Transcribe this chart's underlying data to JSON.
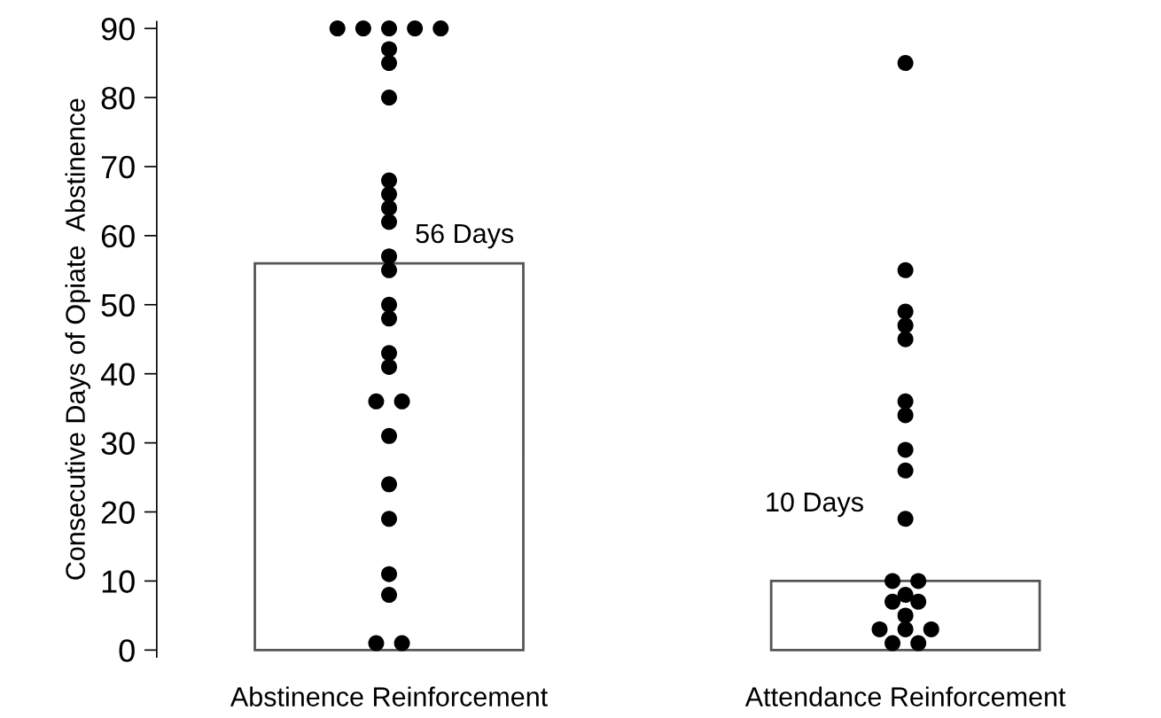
{
  "chart_data": {
    "type": "bar",
    "ylabel": "Consecutive Days of Opiate  Abstinence",
    "categories": [
      "Abstinence Reinforcement",
      "Attendance Reinforcement"
    ],
    "values": [
      56,
      10
    ],
    "value_labels": [
      "56 Days",
      "10 Days"
    ],
    "color": "#ffffff",
    "ylim": [
      -1,
      91
    ],
    "yticks": [
      0,
      10,
      20,
      30,
      40,
      50,
      60,
      70,
      80,
      90
    ],
    "grid": false,
    "legend": false,
    "series": [
      {
        "type": "scatter",
        "color": "#000000",
        "marker": "circle",
        "x": [
          "Abstinence Reinforcement",
          "Abstinence Reinforcement",
          "Abstinence Reinforcement",
          "Abstinence Reinforcement",
          "Abstinence Reinforcement",
          "Abstinence Reinforcement",
          "Abstinence Reinforcement",
          "Abstinence Reinforcement",
          "Abstinence Reinforcement",
          "Abstinence Reinforcement",
          "Abstinence Reinforcement",
          "Abstinence Reinforcement",
          "Abstinence Reinforcement",
          "Abstinence Reinforcement",
          "Abstinence Reinforcement",
          "Abstinence Reinforcement",
          "Abstinence Reinforcement",
          "Abstinence Reinforcement",
          "Abstinence Reinforcement",
          "Abstinence Reinforcement",
          "Abstinence Reinforcement",
          "Abstinence Reinforcement",
          "Abstinence Reinforcement",
          "Abstinence Reinforcement",
          "Abstinence Reinforcement",
          "Abstinence Reinforcement",
          "Abstinence Reinforcement"
        ],
        "values": [
          90,
          90,
          90,
          90,
          90,
          87,
          85,
          80,
          68,
          66,
          64,
          62,
          57,
          55,
          50,
          48,
          43,
          41,
          36,
          36,
          31,
          24,
          19,
          11,
          8,
          1,
          1
        ]
      },
      {
        "type": "scatter",
        "color": "#000000",
        "marker": "circle",
        "x": [
          "Attendance Reinforcement",
          "Attendance Reinforcement",
          "Attendance Reinforcement",
          "Attendance Reinforcement",
          "Attendance Reinforcement",
          "Attendance Reinforcement",
          "Attendance Reinforcement",
          "Attendance Reinforcement",
          "Attendance Reinforcement",
          "Attendance Reinforcement",
          "Attendance Reinforcement",
          "Attendance Reinforcement",
          "Attendance Reinforcement",
          "Attendance Reinforcement",
          "Attendance Reinforcement",
          "Attendance Reinforcement",
          "Attendance Reinforcement",
          "Attendance Reinforcement",
          "Attendance Reinforcement",
          "Attendance Reinforcement",
          "Attendance Reinforcement"
        ],
        "values": [
          85,
          55,
          49,
          47,
          45,
          36,
          34,
          29,
          26,
          19,
          10,
          10,
          8,
          7,
          7,
          5,
          3,
          3,
          3,
          1,
          1
        ]
      }
    ]
  }
}
